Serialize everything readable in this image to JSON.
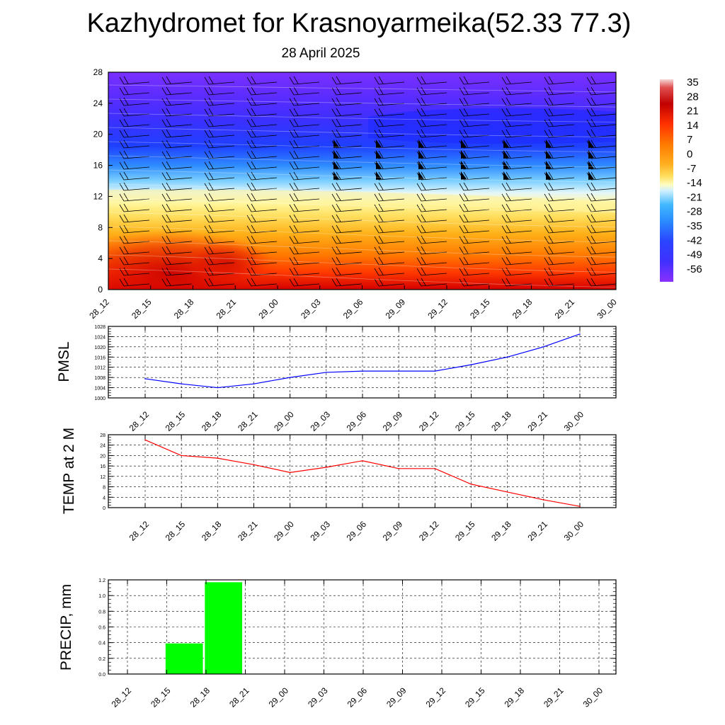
{
  "title": "Kazhydromet for Krasnoyarmeika(52.33 77.3)",
  "subtitle": "28 April 2025",
  "colors": {
    "pmsl_line": "#0000ff",
    "temp_line": "#ff0000",
    "precip_bar": "#00ff00",
    "temperature_scale": [
      "#f4c4c4",
      "#b40000",
      "#ff2a00",
      "#ff7a00",
      "#ffb000",
      "#ffe070",
      "#fffaa0",
      "#c8eeff",
      "#35b0ff",
      "#2c6cff",
      "#2a3cff",
      "#4a28ff",
      "#7a30ff"
    ]
  },
  "chart_data": [
    {
      "type": "heatmap",
      "name_key": "vertical-cross-section",
      "title": "",
      "xlabel": "",
      "ylabel": "",
      "x": [
        "28_12",
        "28_15",
        "28_18",
        "28_21",
        "29_00",
        "29_03",
        "29_06",
        "29_09",
        "29_12",
        "29_15",
        "29_18",
        "29_21",
        "30_00"
      ],
      "ylim": [
        0,
        28
      ],
      "yticks": [
        "0",
        "4",
        "8",
        "12",
        "16",
        "20",
        "24",
        "28"
      ],
      "colorbar_labels": [
        "35",
        "28",
        "21",
        "14",
        "7",
        "0",
        "-7",
        "-14",
        "-21",
        "-28",
        "-35",
        "-42",
        "-49",
        "-56"
      ],
      "overlay": "wind barbs",
      "grid": false
    },
    {
      "type": "line",
      "ylabel": "PMSL",
      "categories": [
        "28_12",
        "28_15",
        "28_18",
        "28_21",
        "29_00",
        "29_03",
        "29_06",
        "29_09",
        "29_12",
        "29_15",
        "29_18",
        "29_21",
        "30_00"
      ],
      "values": [
        1007.5,
        1005.5,
        1004,
        1005.5,
        1008,
        1010,
        1010.5,
        1010.5,
        1010.5,
        1013,
        1016,
        1020,
        1025
      ],
      "ylim": [
        1000,
        1028
      ],
      "yticks": [
        "1000",
        "1004",
        "1008",
        "1012",
        "1016",
        "1020",
        "1024",
        "1028"
      ],
      "grid": true
    },
    {
      "type": "line",
      "ylabel": "TEMP at 2 M",
      "categories": [
        "28_12",
        "28_15",
        "28_18",
        "28_21",
        "29_00",
        "29_03",
        "29_06",
        "29_09",
        "29_12",
        "29_15",
        "29_18",
        "29_21",
        "30_00"
      ],
      "values": [
        26,
        20,
        19,
        16.5,
        13.5,
        15.5,
        18,
        15,
        15,
        9,
        6,
        3,
        0.5
      ],
      "ylim": [
        0,
        28
      ],
      "yticks": [
        "0",
        "4",
        "8",
        "12",
        "16",
        "20",
        "24",
        "28"
      ],
      "grid": true
    },
    {
      "type": "bar",
      "ylabel": "PRECIP, mm",
      "categories": [
        "28_12",
        "28_15",
        "28_18",
        "28_21",
        "29_00",
        "29_03",
        "29_06",
        "29_09",
        "29_12",
        "29_15",
        "29_18",
        "29_21",
        "30_00"
      ],
      "values": [
        0,
        0,
        0.39,
        1.17,
        0,
        0,
        0,
        0,
        0,
        0,
        0,
        0,
        0
      ],
      "ylim": [
        0,
        1.2
      ],
      "yticks": [
        "0.0",
        "0.2",
        "0.4",
        "0.6",
        "0.8",
        "1.0",
        "1.2"
      ],
      "grid": true
    }
  ]
}
